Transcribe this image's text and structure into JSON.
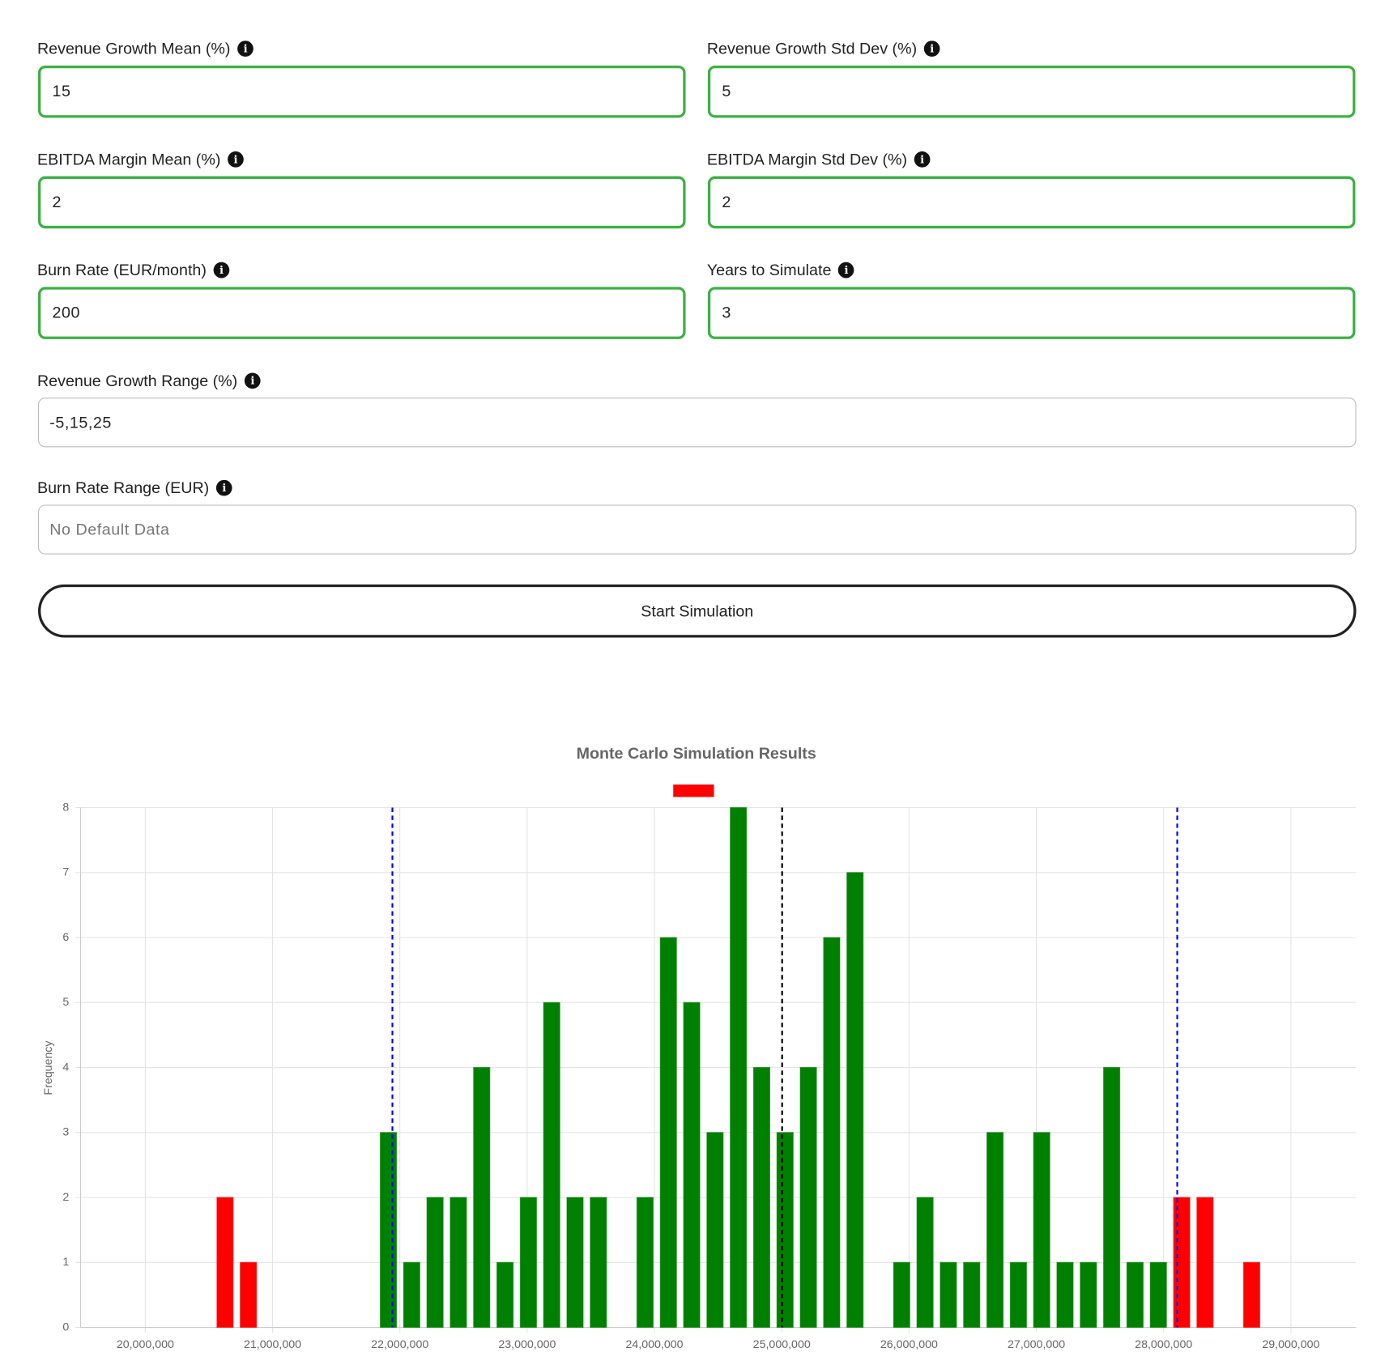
{
  "form": {
    "fields": [
      {
        "label": "Revenue Growth Mean (%)",
        "value": "15"
      },
      {
        "label": "Revenue Growth Std Dev (%)",
        "value": "5"
      },
      {
        "label": "EBITDA Margin Mean (%)",
        "value": "2"
      },
      {
        "label": "EBITDA Margin Std Dev (%)",
        "value": "2"
      },
      {
        "label": "Burn Rate (EUR/month)",
        "value": "200"
      },
      {
        "label": "Years to Simulate",
        "value": "3"
      }
    ],
    "range_fields": [
      {
        "label": "Revenue Growth Range (%)",
        "value": "-5,15,25"
      },
      {
        "label": "Burn Rate Range (EUR)",
        "placeholder": "No Default Data"
      }
    ],
    "button": "Start Simulation"
  },
  "chart_data": {
    "type": "histogram",
    "title": "Monte Carlo Simulation Results",
    "y_label": "Frequency",
    "bins": [
      20535000,
      20718300,
      20901600,
      21084900,
      21268200,
      21451500,
      21634800,
      21818100,
      22001400,
      22184700,
      22368000,
      22551300,
      22734600,
      22917900,
      23101200,
      23284500,
      23467800,
      23651100,
      23834400,
      24017700,
      24201000,
      24384300,
      24567600,
      24750900,
      24934200,
      25117500,
      25300800,
      25484100,
      25667400,
      25850700,
      26034000,
      26217300,
      26400600,
      26583900,
      26767200,
      26950500,
      27133800,
      27317100,
      27500400,
      27683700,
      27867000,
      28050300,
      28233600,
      28416900,
      28600200,
      28783500
    ],
    "values": [
      2,
      1,
      0,
      0,
      0,
      0,
      0,
      3,
      1,
      2,
      2,
      4,
      1,
      2,
      5,
      2,
      2,
      0,
      2,
      6,
      5,
      3,
      8,
      4,
      3,
      4,
      6,
      7,
      0,
      1,
      2,
      1,
      1,
      3,
      1,
      3,
      1,
      1,
      4,
      1,
      1,
      2,
      2,
      0,
      1
    ],
    "colors": [
      "#ff0000",
      "#ff0000",
      "#ff0000",
      "#ff0000",
      "#ff0000",
      "#ff0000",
      "#ff0000",
      "#008000",
      "#008000",
      "#008000",
      "#008000",
      "#008000",
      "#008000",
      "#008000",
      "#008000",
      "#008000",
      "#008000",
      "#008000",
      "#008000",
      "#008000",
      "#008000",
      "#008000",
      "#008000",
      "#008000",
      "#008000",
      "#008000",
      "#008000",
      "#008000",
      "#008000",
      "#008000",
      "#008000",
      "#008000",
      "#008000",
      "#008000",
      "#008000",
      "#008000",
      "#008000",
      "#008000",
      "#008000",
      "#008000",
      "#008000",
      "#ff0000",
      "#ff0000",
      "#ff0000",
      "#ff0000"
    ],
    "reference_lines": [
      {
        "value": 21941500,
        "color": "#0000ff"
      },
      {
        "value": 25003000,
        "color": "#000000"
      },
      {
        "value": 28107000,
        "color": "#0000ff"
      }
    ],
    "xlim": [
      19492000,
      29513000
    ],
    "xticks": [
      {
        "value": 20000000,
        "label": "20,000,000"
      },
      {
        "value": 21000000,
        "label": "21,000,000"
      },
      {
        "value": 22000000,
        "label": "22,000,000"
      },
      {
        "value": 23000000,
        "label": "23,000,000"
      },
      {
        "value": 24000000,
        "label": "24,000,000"
      },
      {
        "value": 25000000,
        "label": "25,000,000"
      },
      {
        "value": 26000000,
        "label": "26,000,000"
      },
      {
        "value": 27000000,
        "label": "27,000,000"
      },
      {
        "value": 28000000,
        "label": "28,000,000"
      },
      {
        "value": 29000000,
        "label": "29,000,000"
      }
    ],
    "ylim": [
      0,
      8
    ],
    "yticks": [
      0,
      1,
      2,
      3,
      4,
      5,
      6,
      7,
      8
    ],
    "grid": true
  }
}
